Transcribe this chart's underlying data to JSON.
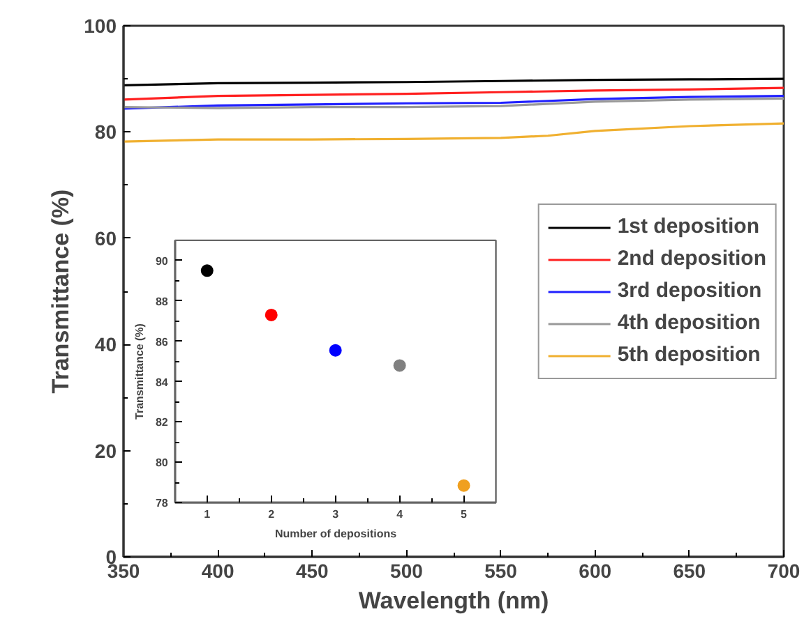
{
  "chart_data": [
    {
      "type": "line",
      "xlabel": "Wavelength (nm)",
      "ylabel": "Transmittance (%)",
      "xlim": [
        350,
        700
      ],
      "ylim": [
        0,
        100
      ],
      "xticks": [
        350,
        400,
        450,
        500,
        550,
        600,
        650,
        700
      ],
      "yticks": [
        0,
        20,
        40,
        60,
        80,
        100
      ],
      "grid": false,
      "legend": "right",
      "line_style": "solid",
      "series": [
        {
          "name": "1st deposition",
          "color": "#000000",
          "x": [
            350,
            400,
            450,
            500,
            550,
            600,
            650,
            700
          ],
          "values": [
            88.8,
            89.2,
            89.3,
            89.4,
            89.6,
            89.8,
            89.9,
            90.0
          ]
        },
        {
          "name": "2nd deposition",
          "color": "#ff2020",
          "x": [
            350,
            400,
            450,
            500,
            550,
            600,
            650,
            700
          ],
          "values": [
            86.1,
            86.8,
            87.0,
            87.2,
            87.5,
            87.8,
            88.0,
            88.3
          ]
        },
        {
          "name": "3rd deposition",
          "color": "#2020ff",
          "x": [
            350,
            400,
            450,
            500,
            550,
            600,
            650,
            700
          ],
          "values": [
            84.4,
            85.0,
            85.2,
            85.4,
            85.5,
            86.2,
            86.6,
            86.8
          ]
        },
        {
          "name": "4th deposition",
          "color": "#999999",
          "x": [
            350,
            400,
            450,
            500,
            550,
            600,
            650,
            700
          ],
          "values": [
            84.7,
            84.5,
            84.7,
            84.7,
            84.9,
            85.7,
            86.1,
            86.3
          ]
        },
        {
          "name": "5th deposition",
          "color": "#f0b030",
          "x": [
            350,
            400,
            450,
            500,
            550,
            575,
            600,
            650,
            700
          ],
          "values": [
            78.2,
            78.6,
            78.6,
            78.7,
            78.9,
            79.3,
            80.2,
            81.1,
            81.6
          ]
        }
      ]
    },
    {
      "type": "scatter",
      "xlabel": "Number of depositions",
      "ylabel": "Transmittance (%)",
      "xlim": [
        0.5,
        5.5
      ],
      "ylim": [
        78,
        91
      ],
      "xticks": [
        1,
        2,
        3,
        4,
        5
      ],
      "yticks": [
        78,
        80,
        82,
        84,
        86,
        88,
        90
      ],
      "legend": false,
      "marker": "circle",
      "x": [
        1,
        2,
        3,
        4,
        5
      ],
      "values": [
        89.5,
        87.3,
        85.55,
        84.8,
        78.85
      ],
      "colors": [
        "#000000",
        "#ff0000",
        "#0000ff",
        "#808080",
        "#f0a020"
      ]
    }
  ]
}
